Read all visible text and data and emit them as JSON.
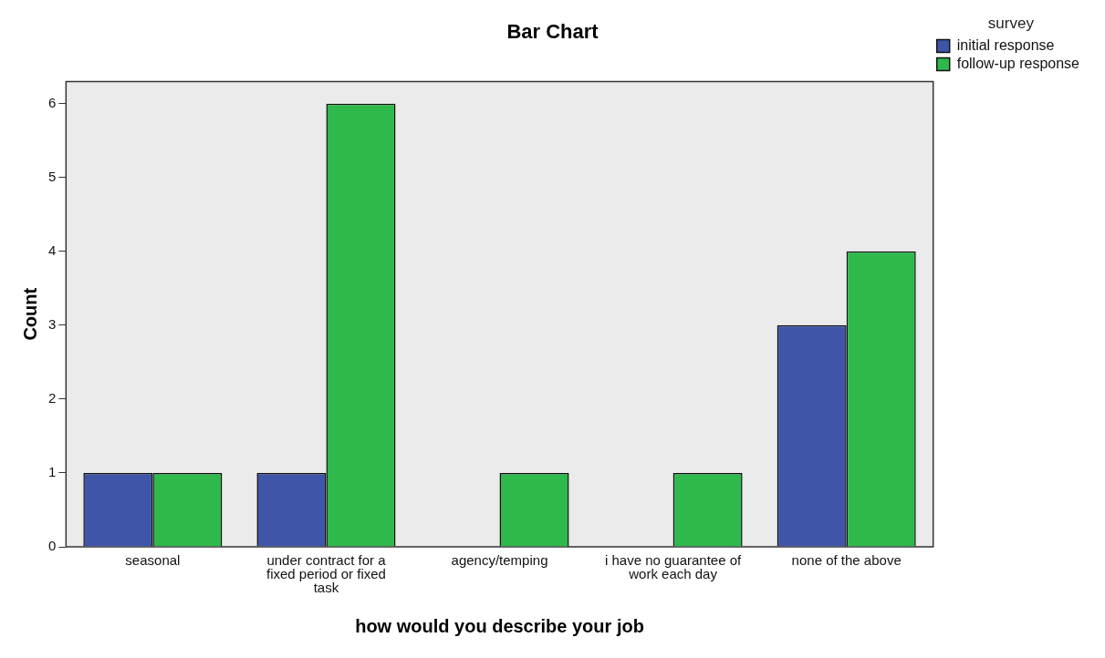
{
  "chart_data": {
    "type": "bar",
    "title": "Bar Chart",
    "xlabel": "how would you describe your job",
    "ylabel": "Count",
    "legend_title": "survey",
    "categories": [
      "seasonal",
      "under contract for a fixed period or fixed task",
      "agency/temping",
      "i have no guarantee of work each day",
      "none of the above"
    ],
    "series": [
      {
        "name": "initial response",
        "color": "#3f55a8",
        "values": [
          1,
          1,
          null,
          null,
          3
        ]
      },
      {
        "name": "follow-up response",
        "color": "#2fb84c",
        "values": [
          1,
          6,
          1,
          1,
          4
        ]
      }
    ],
    "ylim": [
      0,
      6.3
    ],
    "yticks": [
      0,
      1,
      2,
      3,
      4,
      5,
      6
    ],
    "grid": false,
    "legend": "top right"
  }
}
